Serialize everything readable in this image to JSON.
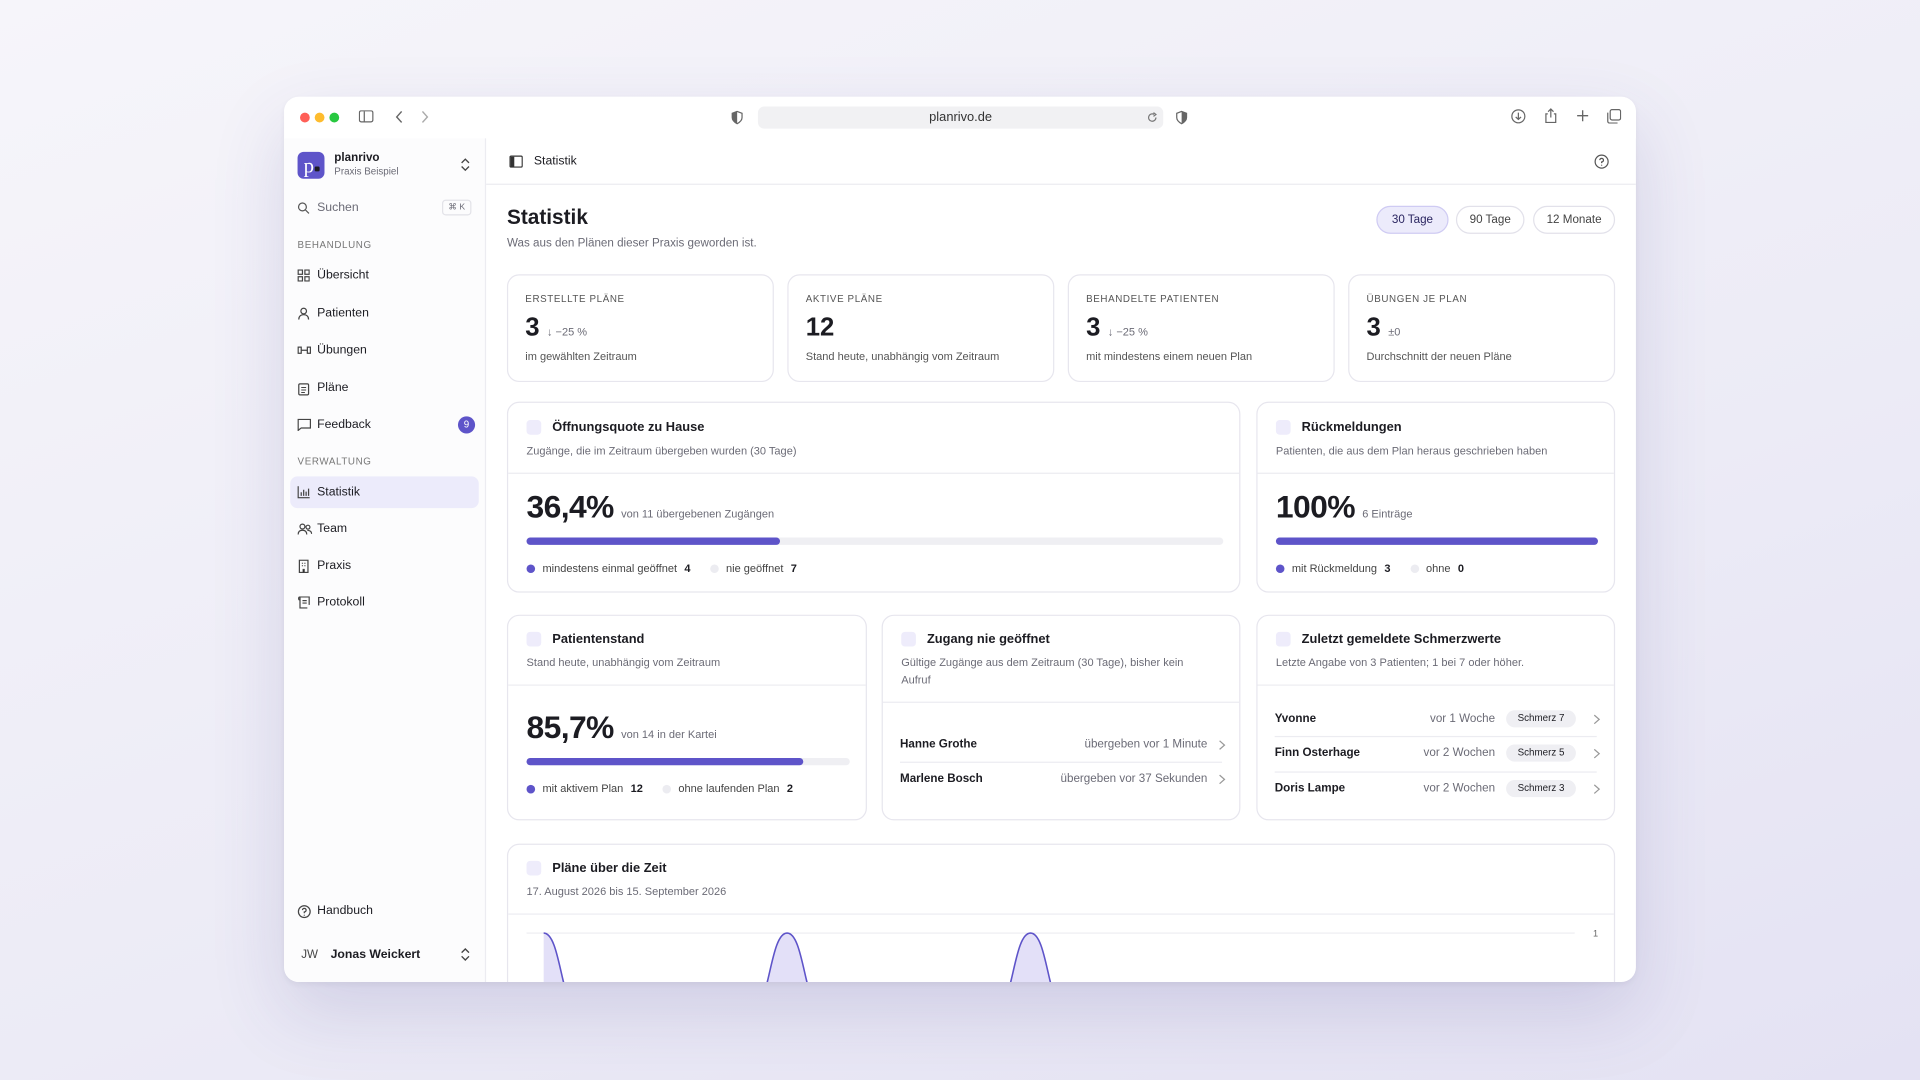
{
  "browser": {
    "url": "planrivo.de"
  },
  "sidebar": {
    "brand": {
      "name": "planrivo",
      "subtitle": "Praxis Beispiel"
    },
    "search": {
      "placeholder": "Suchen",
      "shortcut": "⌘ K"
    },
    "sections": [
      {
        "title": "BEHANDLUNG",
        "items": [
          {
            "label": "Übersicht"
          },
          {
            "label": "Patienten"
          },
          {
            "label": "Übungen"
          },
          {
            "label": "Pläne"
          },
          {
            "label": "Feedback",
            "badge": 9
          }
        ]
      },
      {
        "title": "VERWALTUNG",
        "items": [
          {
            "label": "Statistik",
            "active": true
          },
          {
            "label": "Team"
          },
          {
            "label": "Praxis"
          },
          {
            "label": "Protokoll"
          }
        ]
      }
    ],
    "help": "Handbuch",
    "user": {
      "initials": "JW",
      "name": "Jonas Weickert"
    }
  },
  "topbar": {
    "title": "Statistik"
  },
  "page": {
    "title": "Statistik",
    "subtitle": "Was aus den Plänen dieser Praxis geworden ist.",
    "ranges": [
      {
        "label": "30 Tage",
        "active": true
      },
      {
        "label": "90 Tage"
      },
      {
        "label": "12 Monate"
      }
    ]
  },
  "kpis": [
    {
      "label": "ERSTELLTE PLÄNE",
      "value": 3,
      "delta": "↓ −25 %",
      "note": "im gewählten Zeitraum"
    },
    {
      "label": "AKTIVE PLÄNE",
      "value": 12,
      "note": "Stand heute, unabhängig vom Zeitraum"
    },
    {
      "label": "BEHANDELTE PATIENTEN",
      "value": 3,
      "delta": "↓ −25 %",
      "note": "mit mindestens einem neuen Plan"
    },
    {
      "label": "ÜBUNGEN JE PLAN",
      "value": 3,
      "delta": "±0",
      "note": "Durchschnitt der neuen Pläne"
    }
  ],
  "open_rate": {
    "title": "Öffnungsquote zu Hause",
    "subtitle": "Zugänge, die im Zeitraum übergeben wurden (30 Tage)",
    "percent": 36.4,
    "percent_label": "36,4%",
    "detail": "von 11 übergebenen Zugängen",
    "legend": [
      {
        "label": "mindestens einmal geöffnet",
        "count": 4
      },
      {
        "label": "nie geöffnet",
        "count": 7
      }
    ]
  },
  "feedback": {
    "title": "Rückmeldungen",
    "subtitle": "Patienten, die aus dem Plan heraus geschrieben haben",
    "percent": 100,
    "percent_label": "100%",
    "detail": "6 Einträge",
    "legend": [
      {
        "label": "mit Rückmeldung",
        "count": 3
      },
      {
        "label": "ohne",
        "count": 0
      }
    ]
  },
  "patients": {
    "title": "Patientenstand",
    "subtitle": "Stand heute, unabhängig vom Zeitraum",
    "percent": 85.7,
    "percent_label": "85,7%",
    "detail": "von 14 in der Kartei",
    "legend": [
      {
        "label": "mit aktivem Plan",
        "count": 12
      },
      {
        "label": "ohne laufenden Plan",
        "count": 2
      }
    ]
  },
  "never_opened": {
    "title": "Zugang nie geöffnet",
    "subtitle": "Gültige Zugänge aus dem Zeitraum (30 Tage), bisher kein Aufruf",
    "rows": [
      {
        "name": "Hanne Grothe",
        "info": "übergeben vor 1 Minute"
      },
      {
        "name": "Marlene Bosch",
        "info": "übergeben vor 37 Sekunden"
      }
    ]
  },
  "pain": {
    "title": "Zuletzt gemeldete Schmerzwerte",
    "subtitle": "Letzte Angabe von 3 Patienten; 1 bei 7 oder höher.",
    "rows": [
      {
        "name": "Yvonne",
        "when": "vor 1 Woche",
        "tag": "Schmerz 7"
      },
      {
        "name": "Finn Osterhage",
        "when": "vor 2 Wochen",
        "tag": "Schmerz 5"
      },
      {
        "name": "Doris Lampe",
        "when": "vor 2 Wochen",
        "tag": "Schmerz 3"
      }
    ]
  },
  "timeline": {
    "title": "Pläne über die Zeit",
    "subtitle": "17. August 2026 bis 15. September 2026",
    "ylim": [
      0,
      1
    ],
    "yticks": [
      1
    ],
    "values": [
      1,
      0,
      0,
      0,
      0,
      0,
      0,
      1,
      0,
      0,
      0,
      0,
      0,
      0,
      1,
      0,
      0,
      0,
      0,
      0,
      0,
      0,
      0,
      0,
      0,
      0,
      0,
      0,
      0,
      0
    ]
  }
}
